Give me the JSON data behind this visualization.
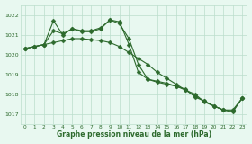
{
  "line1_x": [
    0,
    1,
    2,
    3,
    4,
    5,
    6,
    7,
    8,
    9,
    10,
    11,
    12,
    13,
    14,
    15,
    16,
    17,
    18,
    19,
    20,
    21,
    22,
    23
  ],
  "line1_y": [
    1020.3,
    1020.4,
    1020.5,
    1021.7,
    1021.0,
    1021.3,
    1021.2,
    1021.2,
    1021.35,
    1021.75,
    1021.65,
    1020.5,
    1019.1,
    1018.75,
    1018.6,
    1018.5,
    1018.4,
    1018.2,
    1018.0,
    1017.6,
    1017.4,
    1017.2,
    1017.2,
    1017.8
  ],
  "line2_x": [
    0,
    1,
    2,
    3,
    4,
    5,
    6,
    7,
    8,
    9,
    10,
    11,
    12,
    13,
    14,
    15,
    16,
    17,
    18,
    19,
    20,
    21,
    22,
    23
  ],
  "line2_y": [
    1020.3,
    1020.4,
    1020.5,
    1020.6,
    1020.7,
    1020.8,
    1020.8,
    1020.75,
    1020.7,
    1020.6,
    1020.4,
    1020.1,
    1019.8,
    1019.5,
    1019.1,
    1018.8,
    1018.5,
    1018.2,
    1017.9,
    1017.65,
    1017.4,
    1017.2,
    1017.1,
    1017.8
  ],
  "line3_x": [
    0,
    1,
    2,
    3,
    4,
    5,
    6,
    7,
    8,
    9,
    10,
    11,
    12,
    13,
    14,
    15,
    16,
    17,
    18,
    19,
    20,
    21,
    22,
    23
  ],
  "line3_y": [
    1020.3,
    1020.4,
    1020.5,
    1021.2,
    1021.05,
    1021.3,
    1021.15,
    1021.15,
    1021.3,
    1021.75,
    1021.55,
    1020.8,
    1019.5,
    1018.75,
    1018.65,
    1018.55,
    1018.4,
    1018.25,
    1017.85,
    1017.65,
    1017.4,
    1017.2,
    1017.15,
    1017.8
  ],
  "bg_color": "#e8f8f0",
  "grid_color": "#bbddcc",
  "line_color": "#2d6a2d",
  "marker": "D",
  "marker_size": 2.5,
  "xlabel": "Graphe pression niveau de la mer (hPa)",
  "ylim": [
    1016.5,
    1022.5
  ],
  "xlim": [
    -0.5,
    23.5
  ],
  "yticks": [
    1017,
    1018,
    1019,
    1020,
    1021,
    1022
  ],
  "xticks": [
    0,
    1,
    2,
    3,
    4,
    5,
    6,
    7,
    8,
    9,
    10,
    11,
    12,
    13,
    14,
    15,
    16,
    17,
    18,
    19,
    20,
    21,
    22,
    23
  ]
}
